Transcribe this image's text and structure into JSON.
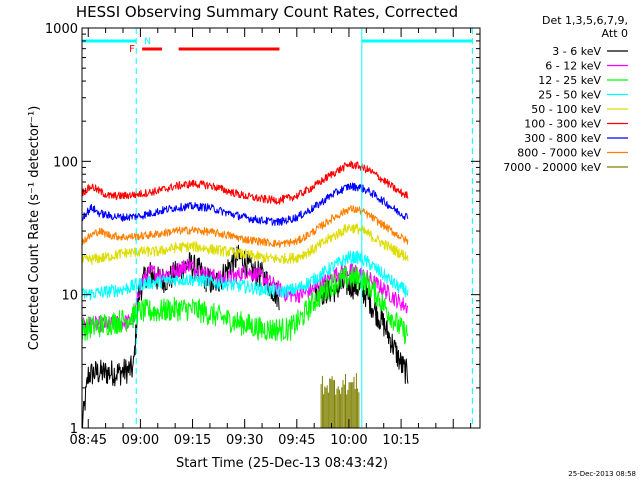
{
  "chart_data": {
    "type": "line",
    "title": "HESSI Observing Summary Count Rates, Corrected",
    "xlabel": "Start Time (25-Dec-13 08:43:42)",
    "ylabel": "Corrected Count Rate (s⁻¹ detector⁻¹)",
    "y_scale": "log",
    "ylim": [
      1,
      1000
    ],
    "xlim_minutes": [
      -16.8,
      97.7
    ],
    "y_ticks": [
      {
        "value": 1,
        "label": "1"
      },
      {
        "value": 10,
        "label": "10"
      },
      {
        "value": 100,
        "label": "100"
      },
      {
        "value": 1000,
        "label": "1000"
      }
    ],
    "x_ticks": [
      {
        "minute": -15,
        "label": "08:45"
      },
      {
        "minute": 0,
        "label": "09:00"
      },
      {
        "minute": 15,
        "label": "09:15"
      },
      {
        "minute": 30,
        "label": "09:30"
      },
      {
        "minute": 45,
        "label": "09:45"
      },
      {
        "minute": 60,
        "label": "10:00"
      },
      {
        "minute": 75,
        "label": "10:15"
      }
    ],
    "footer_date": "25-Dec-2013 08:58",
    "legend": {
      "header": [
        "Det 1,3,5,6,7,9,",
        "Att 0"
      ],
      "placement": "right"
    },
    "annotations": {
      "night_label": "N",
      "flare_label": "F",
      "night_color": "#00ffff",
      "flare_color": "#ff0000",
      "night_bars_minutes": [
        [
          -16.8,
          -1.2
        ],
        [
          63.7,
          95.5
        ]
      ],
      "night_dashed_minutes": [
        -1.2,
        95.5
      ],
      "night_solid_minutes": [
        63.7
      ],
      "flare_bars_minutes": [
        [
          0.5,
          6.2
        ],
        [
          11,
          40
        ]
      ]
    },
    "series": [
      {
        "name": "3 - 6 keV",
        "color": "#000000",
        "noise": 0.1,
        "gap": [
          40,
          50
        ],
        "points": [
          [
            -16.8,
            1.0
          ],
          [
            -15,
            2.5
          ],
          [
            -13,
            2.6
          ],
          [
            -10,
            2.6
          ],
          [
            -6,
            2.6
          ],
          [
            -2,
            2.8
          ],
          [
            -0.5,
            10
          ],
          [
            2,
            15
          ],
          [
            5,
            13
          ],
          [
            8,
            13
          ],
          [
            11,
            15
          ],
          [
            14,
            17
          ],
          [
            17,
            15
          ],
          [
            19,
            13
          ],
          [
            21,
            12
          ],
          [
            23,
            13
          ],
          [
            26,
            17
          ],
          [
            28,
            19
          ],
          [
            30,
            18
          ],
          [
            32,
            15
          ],
          [
            35,
            14
          ],
          [
            38,
            11
          ],
          [
            40,
            9.5
          ],
          [
            50,
            10
          ],
          [
            53,
            10.5
          ],
          [
            56,
            11
          ],
          [
            59,
            12
          ],
          [
            62,
            11.5
          ],
          [
            65,
            10
          ],
          [
            67,
            8
          ],
          [
            70,
            6
          ],
          [
            73,
            4
          ],
          [
            75,
            3
          ],
          [
            77,
            2.5
          ]
        ]
      },
      {
        "name": "6 - 12 keV",
        "color": "#ff00ff",
        "noise": 0.06,
        "points": [
          [
            -16.8,
            6
          ],
          [
            -10,
            6
          ],
          [
            -2,
            6.3
          ],
          [
            0,
            12
          ],
          [
            3,
            15
          ],
          [
            6,
            14
          ],
          [
            10,
            15
          ],
          [
            14,
            17
          ],
          [
            17,
            15
          ],
          [
            20,
            14
          ],
          [
            24,
            13
          ],
          [
            28,
            14
          ],
          [
            30,
            15
          ],
          [
            34,
            14
          ],
          [
            38,
            12
          ],
          [
            42,
            10
          ],
          [
            46,
            10
          ],
          [
            50,
            11
          ],
          [
            54,
            13
          ],
          [
            58,
            15
          ],
          [
            62,
            15
          ],
          [
            66,
            13
          ],
          [
            70,
            11
          ],
          [
            74,
            9
          ],
          [
            77,
            8
          ]
        ]
      },
      {
        "name": "12 - 25 keV",
        "color": "#00ff00",
        "noise": 0.09,
        "points": [
          [
            -16.8,
            5.5
          ],
          [
            -10,
            6
          ],
          [
            -4,
            6.5
          ],
          [
            0,
            7.5
          ],
          [
            5,
            7.5
          ],
          [
            10,
            7.8
          ],
          [
            15,
            7.8
          ],
          [
            20,
            7.2
          ],
          [
            25,
            6.5
          ],
          [
            30,
            6
          ],
          [
            35,
            5.5
          ],
          [
            40,
            5.5
          ],
          [
            43,
            5.5
          ],
          [
            46,
            6.5
          ],
          [
            50,
            9
          ],
          [
            55,
            12
          ],
          [
            60,
            13.5
          ],
          [
            64,
            13
          ],
          [
            68,
            10
          ],
          [
            72,
            7
          ],
          [
            75,
            5.5
          ],
          [
            77,
            5
          ]
        ]
      },
      {
        "name": "25 - 50 keV",
        "color": "#00ffff",
        "noise": 0.05,
        "points": [
          [
            -16.8,
            10
          ],
          [
            -10,
            10.5
          ],
          [
            -5,
            11
          ],
          [
            0,
            12
          ],
          [
            5,
            12.5
          ],
          [
            10,
            13
          ],
          [
            15,
            13
          ],
          [
            20,
            12.5
          ],
          [
            25,
            12
          ],
          [
            30,
            11.5
          ],
          [
            35,
            11
          ],
          [
            40,
            10.5
          ],
          [
            45,
            11
          ],
          [
            50,
            13
          ],
          [
            55,
            16
          ],
          [
            60,
            19
          ],
          [
            63,
            19
          ],
          [
            66,
            17
          ],
          [
            70,
            14
          ],
          [
            74,
            11.5
          ],
          [
            77,
            10.5
          ]
        ]
      },
      {
        "name": "50 - 100 keV",
        "color": "#dddd00",
        "noise": 0.04,
        "points": [
          [
            -16.8,
            18
          ],
          [
            -10,
            19
          ],
          [
            -5,
            20.5
          ],
          [
            0,
            21
          ],
          [
            5,
            21
          ],
          [
            10,
            22.5
          ],
          [
            15,
            23
          ],
          [
            20,
            22
          ],
          [
            25,
            21
          ],
          [
            30,
            20
          ],
          [
            35,
            19
          ],
          [
            40,
            18.5
          ],
          [
            45,
            19
          ],
          [
            50,
            22
          ],
          [
            55,
            27
          ],
          [
            60,
            32
          ],
          [
            63,
            31
          ],
          [
            66,
            28
          ],
          [
            70,
            24
          ],
          [
            74,
            21
          ],
          [
            77,
            19
          ]
        ]
      },
      {
        "name": "100 - 300 keV",
        "color": "#ff0000",
        "noise": 0.03,
        "points": [
          [
            -16.8,
            58
          ],
          [
            -14,
            65
          ],
          [
            -12,
            60
          ],
          [
            -9,
            55
          ],
          [
            -5,
            55
          ],
          [
            0,
            57
          ],
          [
            5,
            60
          ],
          [
            10,
            65
          ],
          [
            15,
            68
          ],
          [
            20,
            66
          ],
          [
            25,
            60
          ],
          [
            30,
            55
          ],
          [
            35,
            52
          ],
          [
            40,
            51
          ],
          [
            45,
            55
          ],
          [
            50,
            65
          ],
          [
            55,
            80
          ],
          [
            60,
            95
          ],
          [
            63,
            92
          ],
          [
            66,
            85
          ],
          [
            70,
            72
          ],
          [
            74,
            60
          ],
          [
            77,
            55
          ]
        ]
      },
      {
        "name": "300 - 800 keV",
        "color": "#0000ff",
        "noise": 0.03,
        "points": [
          [
            -16.8,
            38
          ],
          [
            -14,
            45
          ],
          [
            -12,
            41
          ],
          [
            -9,
            39
          ],
          [
            -5,
            38
          ],
          [
            0,
            39
          ],
          [
            5,
            42
          ],
          [
            10,
            45
          ],
          [
            15,
            46
          ],
          [
            20,
            45
          ],
          [
            25,
            41
          ],
          [
            30,
            38
          ],
          [
            35,
            36
          ],
          [
            40,
            35
          ],
          [
            45,
            38
          ],
          [
            50,
            45
          ],
          [
            55,
            56
          ],
          [
            60,
            65
          ],
          [
            63,
            64
          ],
          [
            66,
            59
          ],
          [
            70,
            50
          ],
          [
            74,
            42
          ],
          [
            77,
            38
          ]
        ]
      },
      {
        "name": "800 - 7000 keV",
        "color": "#ff8000",
        "noise": 0.03,
        "points": [
          [
            -16.8,
            25
          ],
          [
            -14,
            28
          ],
          [
            -12,
            30
          ],
          [
            -9,
            28
          ],
          [
            -5,
            27
          ],
          [
            0,
            27.5
          ],
          [
            5,
            28.5
          ],
          [
            10,
            30
          ],
          [
            15,
            30.5
          ],
          [
            20,
            29.5
          ],
          [
            25,
            28
          ],
          [
            30,
            26
          ],
          [
            35,
            25
          ],
          [
            40,
            24
          ],
          [
            45,
            25
          ],
          [
            50,
            30
          ],
          [
            55,
            37
          ],
          [
            60,
            44
          ],
          [
            63,
            43
          ],
          [
            66,
            39
          ],
          [
            70,
            33
          ],
          [
            74,
            28
          ],
          [
            77,
            25
          ]
        ]
      },
      {
        "name": "7000 - 20000 keV",
        "color": "#808000",
        "noise": 0.0,
        "spikes": [
          52,
          63,
          2.6
        ],
        "points": [
          [
            52,
            1.0
          ],
          [
            63,
            1.0
          ]
        ]
      }
    ]
  }
}
